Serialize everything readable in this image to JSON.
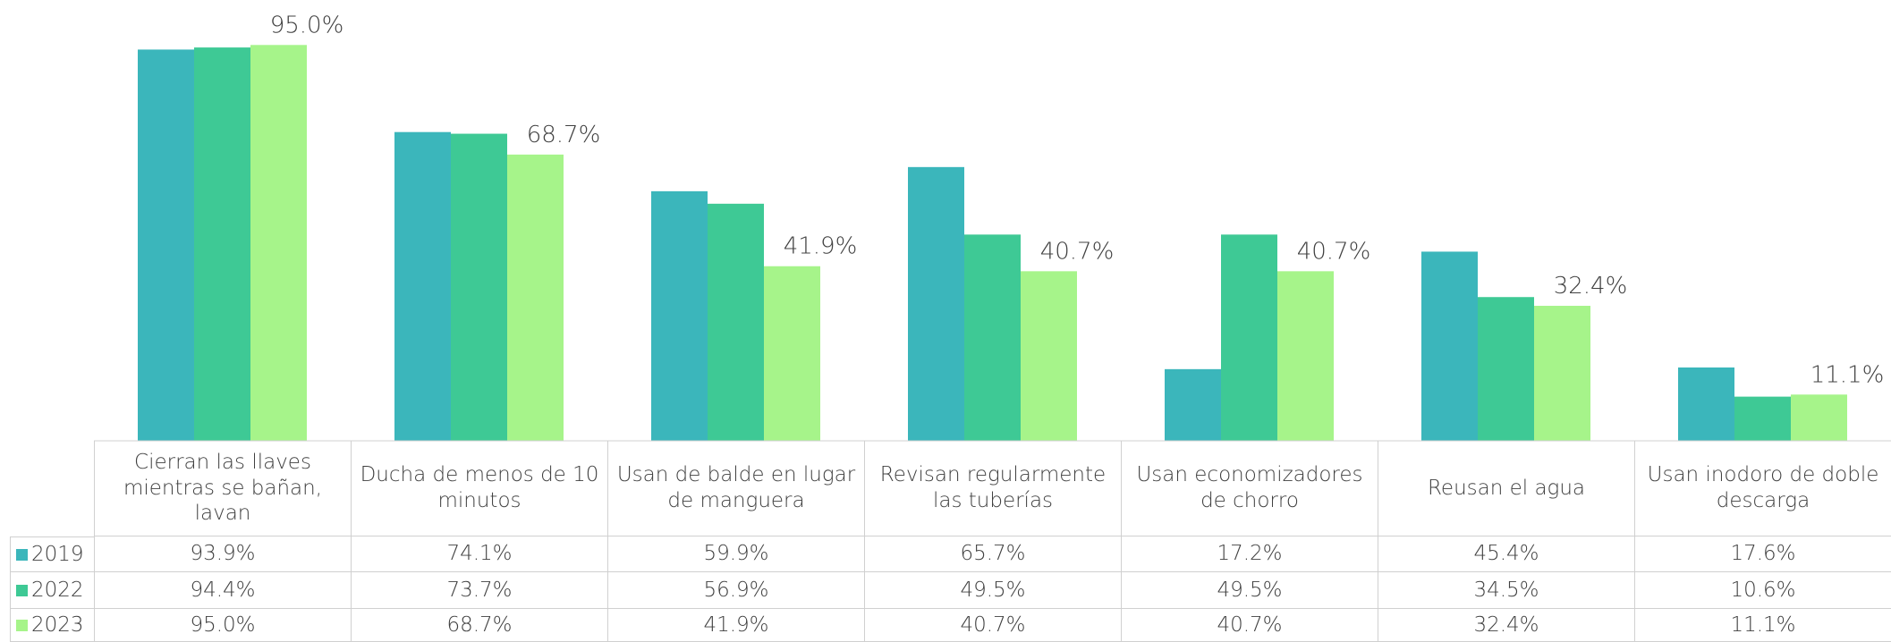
{
  "chart_data": {
    "type": "bar",
    "categories": [
      "Cierran las llaves mientras se bañan, lavan",
      "Ducha de menos de 10 minutos",
      "Usan de balde en lugar de manguera",
      "Revisan regularmente las tuberías",
      "Usan economizadores de chorro",
      "Reusan el agua",
      "Usan inodoro de doble descarga"
    ],
    "series": [
      {
        "name": "2019",
        "color": "#3bb6bb",
        "values": [
          93.9,
          74.1,
          59.9,
          65.7,
          17.2,
          45.4,
          17.6
        ],
        "value_labels": [
          "93.9%",
          "74.1%",
          "59.9%",
          "65.7%",
          "17.2%",
          "45.4%",
          "17.6%"
        ]
      },
      {
        "name": "2022",
        "color": "#3ec995",
        "values": [
          94.4,
          73.7,
          56.9,
          49.5,
          49.5,
          34.5,
          10.6
        ],
        "value_labels": [
          "94.4%",
          "73.7%",
          "56.9%",
          "49.5%",
          "49.5%",
          "34.5%",
          "10.6%"
        ]
      },
      {
        "name": "2023",
        "color": "#a6f48a",
        "values": [
          95.0,
          68.7,
          41.9,
          40.7,
          40.7,
          32.4,
          11.1
        ],
        "value_labels": [
          "95.0%",
          "68.7%",
          "41.9%",
          "40.7%",
          "40.7%",
          "32.4%",
          "11.1%"
        ],
        "data_labels": true
      }
    ],
    "ylim": [
      0,
      100
    ]
  }
}
